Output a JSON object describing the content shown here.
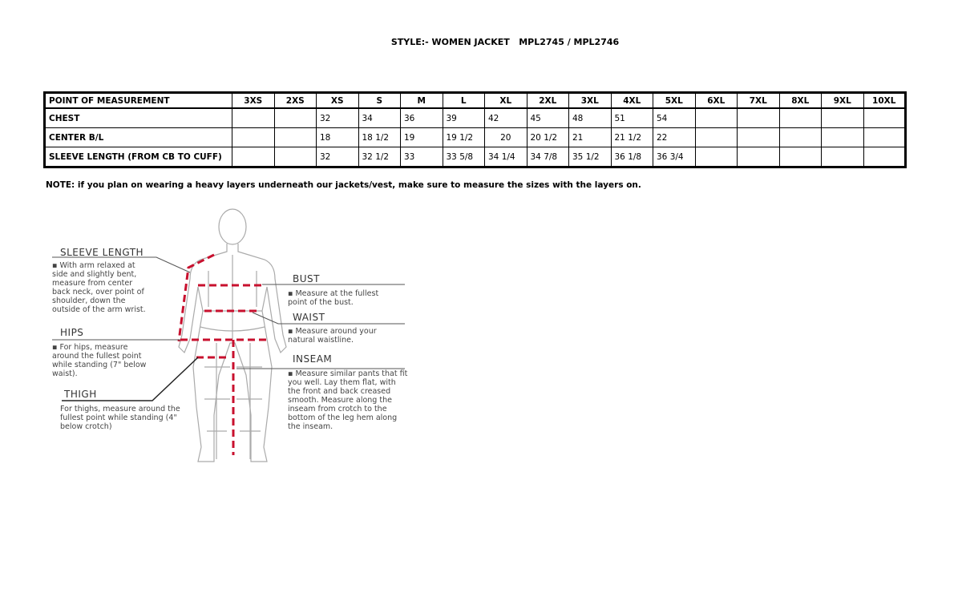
{
  "title": "STYLE:- WOMEN JACKET   MPL2745 / MPL2746",
  "table": {
    "headers": [
      "POINT OF MEASUREMENT",
      "3XS",
      "2XS",
      "XS",
      "S",
      "M",
      "L",
      "XL",
      "2XL",
      "3XL",
      "4XL",
      "5XL",
      "6XL",
      "7XL",
      "8XL",
      "9XL",
      "10XL"
    ],
    "rows": [
      {
        "label": "CHEST",
        "values": [
          "",
          "",
          "32",
          "34",
          "36",
          "39",
          "42",
          "45",
          "48",
          "51",
          "54",
          "",
          "",
          "",
          "",
          ""
        ]
      },
      {
        "label": "CENTER B/L",
        "values": [
          "",
          "",
          "18",
          "18 1/2",
          "19",
          "19 1/2",
          "20",
          "20 1/2",
          "21",
          "21 1/2",
          "22",
          "",
          "",
          "",
          "",
          ""
        ]
      },
      {
        "label": "SLEEVE LENGTH (FROM CB TO CUFF)",
        "values": [
          "",
          "",
          "32",
          "32 1/2",
          "33",
          "33 5/8",
          "34 1/4",
          "34 7/8",
          "35 1/2",
          "36 1/8",
          "36 3/4",
          "",
          "",
          "",
          "",
          ""
        ]
      }
    ]
  },
  "note": "NOTE: if you plan on wearing a heavy layers underneath our jackets/vest, make sure to measure the sizes with the layers on.",
  "figure": {
    "sleeve": {
      "label": "SLEEVE LENGTH",
      "text": "▪ With arm relaxed at side and slightly bent, measure from center back neck, over point of shoulder, down the outside of the arm wrist."
    },
    "hips": {
      "label": "HIPS",
      "text": "▪ For hips, measure around the fullest point while standing (7\" below waist)."
    },
    "thigh": {
      "label": "THIGH",
      "text": "For thighs, measure around the fullest point while standing (4\" below crotch)"
    },
    "bust": {
      "label": "BUST",
      "text": "▪ Measure at the fullest point of the bust."
    },
    "waist": {
      "label": "WAIST",
      "text": "▪ Measure around your natural waistline."
    },
    "inseam": {
      "label": "INSEAM",
      "text": "▪ Measure similar pants that fit you well. Lay them flat, with the front and back creased smooth. Measure along the inseam from crotch to the bottom of the leg hem along the inseam."
    },
    "measure_color": "#c8102e"
  }
}
